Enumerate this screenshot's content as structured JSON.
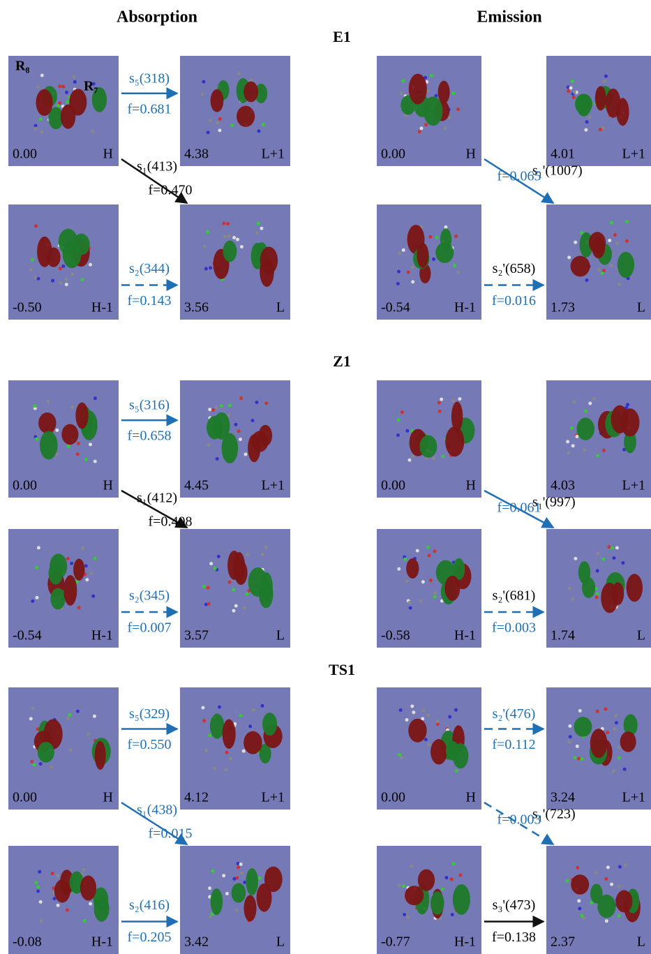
{
  "headers": {
    "absorption": "Absorption",
    "emission": "Emission"
  },
  "markers": [
    "R₈",
    "R₇"
  ],
  "sections": [
    {
      "title": "E1",
      "absorption": {
        "orbitals": [
          {
            "energy": "0.00",
            "label": "H"
          },
          {
            "energy": "4.38",
            "label": "L+1"
          },
          {
            "energy": "-0.50",
            "label": "H-1"
          },
          {
            "energy": "3.56",
            "label": "L"
          }
        ],
        "transitions": {
          "top": {
            "state": "s₅(318)",
            "f": "f=0.681"
          },
          "diagonal": {
            "state": "s₁(413)",
            "f": "f=0.470"
          },
          "bottom": {
            "state": "s₂(344)",
            "f": "f=0.143"
          }
        }
      },
      "emission": {
        "orbitals": [
          {
            "energy": "0.00",
            "label": "H"
          },
          {
            "energy": "4.01",
            "label": "L+1"
          },
          {
            "energy": "-0.54",
            "label": "H-1"
          },
          {
            "energy": "1.73",
            "label": "L"
          }
        ],
        "transitions": {
          "diagonal": {
            "state": "s₁'(1007)",
            "f": "f=0.065"
          },
          "bottom": {
            "state": "s₂'(658)",
            "f": "f=0.016"
          }
        }
      }
    },
    {
      "title": "Z1",
      "absorption": {
        "orbitals": [
          {
            "energy": "0.00",
            "label": "H"
          },
          {
            "energy": "4.45",
            "label": "L+1"
          },
          {
            "energy": "-0.54",
            "label": "H-1"
          },
          {
            "energy": "3.57",
            "label": "L"
          }
        ],
        "transitions": {
          "top": {
            "state": "s₅(316)",
            "f": "f=0.658"
          },
          "diagonal": {
            "state": "s₁(412)",
            "f": "f=0.408"
          },
          "bottom": {
            "state": "s₂(345)",
            "f": "f=0.007"
          }
        }
      },
      "emission": {
        "orbitals": [
          {
            "energy": "0.00",
            "label": "H"
          },
          {
            "energy": "4.03",
            "label": "L+1"
          },
          {
            "energy": "-0.58",
            "label": "H-1"
          },
          {
            "energy": "1.74",
            "label": "L"
          }
        ],
        "transitions": {
          "diagonal": {
            "state": "s₁'(997)",
            "f": "f=0.061"
          },
          "bottom": {
            "state": "s₂'(681)",
            "f": "f=0.003"
          }
        }
      }
    },
    {
      "title": "TS1",
      "absorption": {
        "orbitals": [
          {
            "energy": "0.00",
            "label": "H"
          },
          {
            "energy": "4.12",
            "label": "L+1"
          },
          {
            "energy": "-0.08",
            "label": "H-1"
          },
          {
            "energy": "3.42",
            "label": "L"
          }
        ],
        "transitions": {
          "top": {
            "state": "s₅(329)",
            "f": "f=0.550"
          },
          "diagonal": {
            "state": "s₁(438)",
            "f": "f=0.015"
          },
          "bottom": {
            "state": "s₂(416)",
            "f": "f=0.205"
          }
        }
      },
      "emission": {
        "orbitals": [
          {
            "energy": "0.00",
            "label": "H"
          },
          {
            "energy": "3.24",
            "label": "L+1"
          },
          {
            "energy": "-0.77",
            "label": "H-1"
          },
          {
            "energy": "2.37",
            "label": "L"
          }
        ],
        "transitions": {
          "top": {
            "state": "s₂'(476)",
            "f": "f=0.112"
          },
          "diagonal": {
            "state": "s₁'(723)",
            "f": "f=0.003"
          },
          "bottom": {
            "state": "s₃'(473)",
            "f": "f=0.138"
          }
        }
      }
    }
  ]
}
